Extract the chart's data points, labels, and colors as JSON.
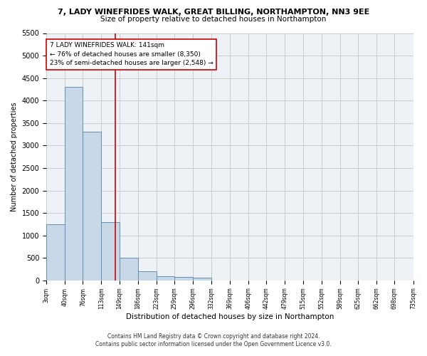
{
  "title": "7, LADY WINEFRIDES WALK, GREAT BILLING, NORTHAMPTON, NN3 9EE",
  "subtitle": "Size of property relative to detached houses in Northampton",
  "xlabel": "Distribution of detached houses by size in Northampton",
  "ylabel": "Number of detached properties",
  "footnote1": "Contains HM Land Registry data © Crown copyright and database right 2024.",
  "footnote2": "Contains public sector information licensed under the Open Government Licence v3.0.",
  "annotation_text": "7 LADY WINEFRIDES WALK: 141sqm\n← 76% of detached houses are smaller (8,350)\n23% of semi-detached houses are larger (2,548) →",
  "property_size": 141,
  "bin_edges": [
    3,
    40,
    76,
    113,
    149,
    186,
    223,
    259,
    296,
    332,
    369,
    406,
    442,
    479,
    515,
    552,
    589,
    625,
    662,
    698,
    735
  ],
  "bar_heights": [
    1250,
    4300,
    3300,
    1300,
    500,
    200,
    100,
    75,
    60,
    0,
    0,
    0,
    0,
    0,
    0,
    0,
    0,
    0,
    0,
    0
  ],
  "bar_color": "#c8d8e8",
  "bar_edge_color": "#6090b0",
  "vline_color": "#cc0000",
  "vline_x": 141,
  "annotation_box_color": "#cc0000",
  "ylim": [
    0,
    5500
  ],
  "yticks": [
    0,
    500,
    1000,
    1500,
    2000,
    2500,
    3000,
    3500,
    4000,
    4500,
    5000,
    5500
  ],
  "grid_color": "#cccccc",
  "bg_color": "#eef2f7"
}
